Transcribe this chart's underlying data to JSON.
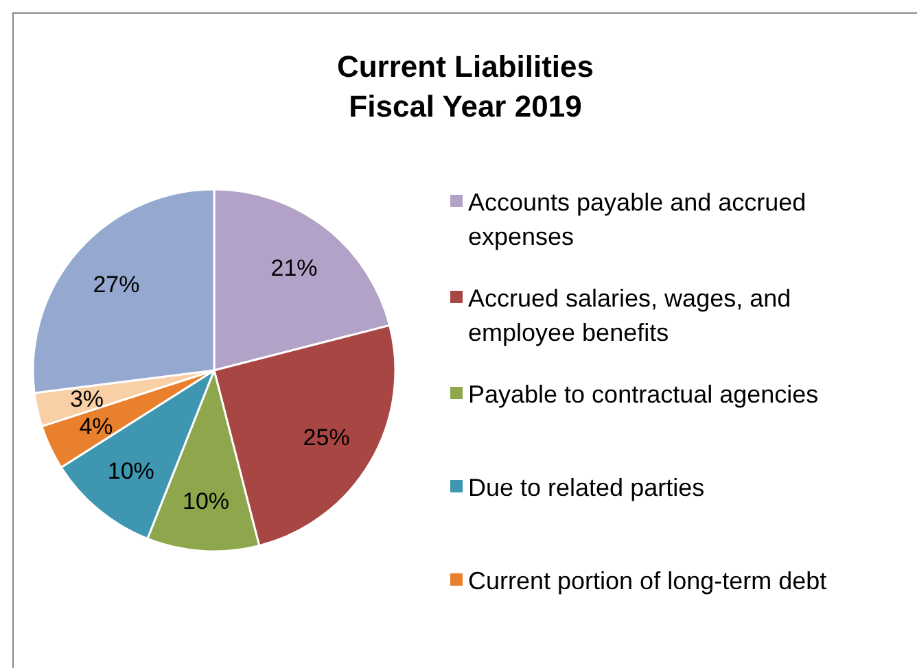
{
  "chart_data": {
    "type": "pie",
    "title": "Current Liabilities\nFiscal Year 2019",
    "categories": [
      "Accounts payable and accrued expenses",
      "Accrued salaries, wages, and employee benefits",
      "Payable to contractual agencies",
      "Due to related parties",
      "Current portion of long-term debt",
      null,
      null
    ],
    "values": [
      21,
      25,
      10,
      10,
      4,
      3,
      27
    ],
    "colors": [
      "#b3a2c7",
      "#a84644",
      "#8ea64c",
      "#3e96b0",
      "#e8802e",
      "#f9cfa5",
      "#95a9d0"
    ],
    "value_labels": [
      "21%",
      "25%",
      "10%",
      "10%",
      "4%",
      "3%",
      "27%"
    ],
    "legend": "right"
  }
}
